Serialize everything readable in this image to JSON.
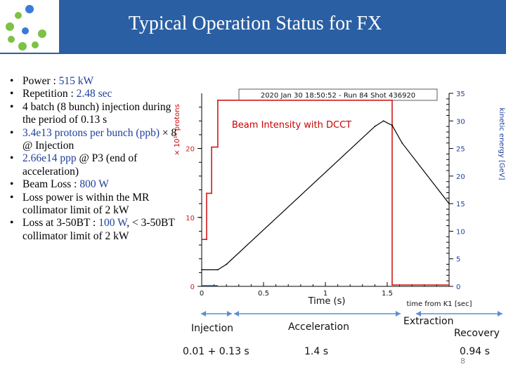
{
  "slide": {
    "title": "Typical Operation Status for FX",
    "page_number": "8",
    "colors": {
      "header": "#2a5fa3",
      "highlight": "#1f3f9b",
      "beam": "#d11a1a",
      "energy": "#000000",
      "phase_arrow": "#5b8fd1"
    }
  },
  "bullets": [
    {
      "label": "Power : ",
      "value": "515 kW",
      "rest": ""
    },
    {
      "label": "Repetition : ",
      "value": "2.48 sec",
      "rest": ""
    },
    {
      "label": "4 batch (8 bunch) injection during the period of 0.13 s",
      "value": "",
      "rest": ""
    },
    {
      "label": "",
      "value": "3.4e13 protons per bunch (ppb)",
      "rest": " × 8 @ Injection"
    },
    {
      "label": "",
      "value": "2.66e14 ppp",
      "rest": " @ P3 (end of acceleration)"
    },
    {
      "label": "Beam Loss : ",
      "value": "800 W",
      "rest": ""
    },
    {
      "label": "Loss power is within the MR collimator limit of 2 kW",
      "value": "",
      "rest": ""
    },
    {
      "label": "Loss at 3-50BT : ",
      "value": "100 W",
      "rest": ", < 3-50BT collimator limit of 2 kW"
    }
  ],
  "chart_data": {
    "type": "line",
    "header_label": "2020 Jan 30 18:50:52 - Run 84 Shot 436920",
    "annotation": "Beam Intensity with DCCT",
    "xlabel": "time from K1 [sec]",
    "xlabel_overlay": "Time (s)",
    "ylabel_left": "× 10¹³ protons",
    "ylabel_right": "kinetic energy [GeV]",
    "xlim": [
      0,
      2.0
    ],
    "ylim_left": [
      0,
      28
    ],
    "ylim_right": [
      0,
      35
    ],
    "x_ticks": [
      "0",
      "0.5",
      "1",
      "1.5"
    ],
    "x_tick_values": [
      0,
      0.5,
      1,
      1.5
    ],
    "y_left_ticks": [
      "0",
      "10",
      "20"
    ],
    "y_left_tick_values": [
      0,
      10,
      20
    ],
    "y_right_ticks": [
      "0",
      "5",
      "10",
      "15",
      "20",
      "25",
      "30",
      "35"
    ],
    "y_right_tick_values": [
      0,
      5,
      10,
      15,
      20,
      25,
      30,
      35
    ],
    "series": [
      {
        "name": "Beam intensity (DCCT)",
        "axis": "left",
        "x": [
          0.0,
          0.04,
          0.04,
          0.08,
          0.08,
          0.13,
          0.13,
          1.54,
          1.54,
          2.0
        ],
        "y": [
          6.8,
          6.8,
          13.5,
          13.5,
          20.2,
          20.2,
          27.0,
          27.0,
          0.2,
          0.2
        ]
      },
      {
        "name": "Kinetic energy",
        "axis": "right",
        "x": [
          0.0,
          0.13,
          0.2,
          1.4,
          1.47,
          1.54,
          1.62,
          2.0
        ],
        "y": [
          3.0,
          3.0,
          4.0,
          29.0,
          30.0,
          29.2,
          26.0,
          15.0
        ]
      }
    ],
    "phases": [
      {
        "name": "Injection",
        "duration": "0.01 + 0.13 s"
      },
      {
        "name": "Acceleration",
        "duration": "1.4 s"
      },
      {
        "name": "Extraction",
        "duration": ""
      },
      {
        "name": "Recovery",
        "duration": "0.94 s"
      }
    ]
  }
}
